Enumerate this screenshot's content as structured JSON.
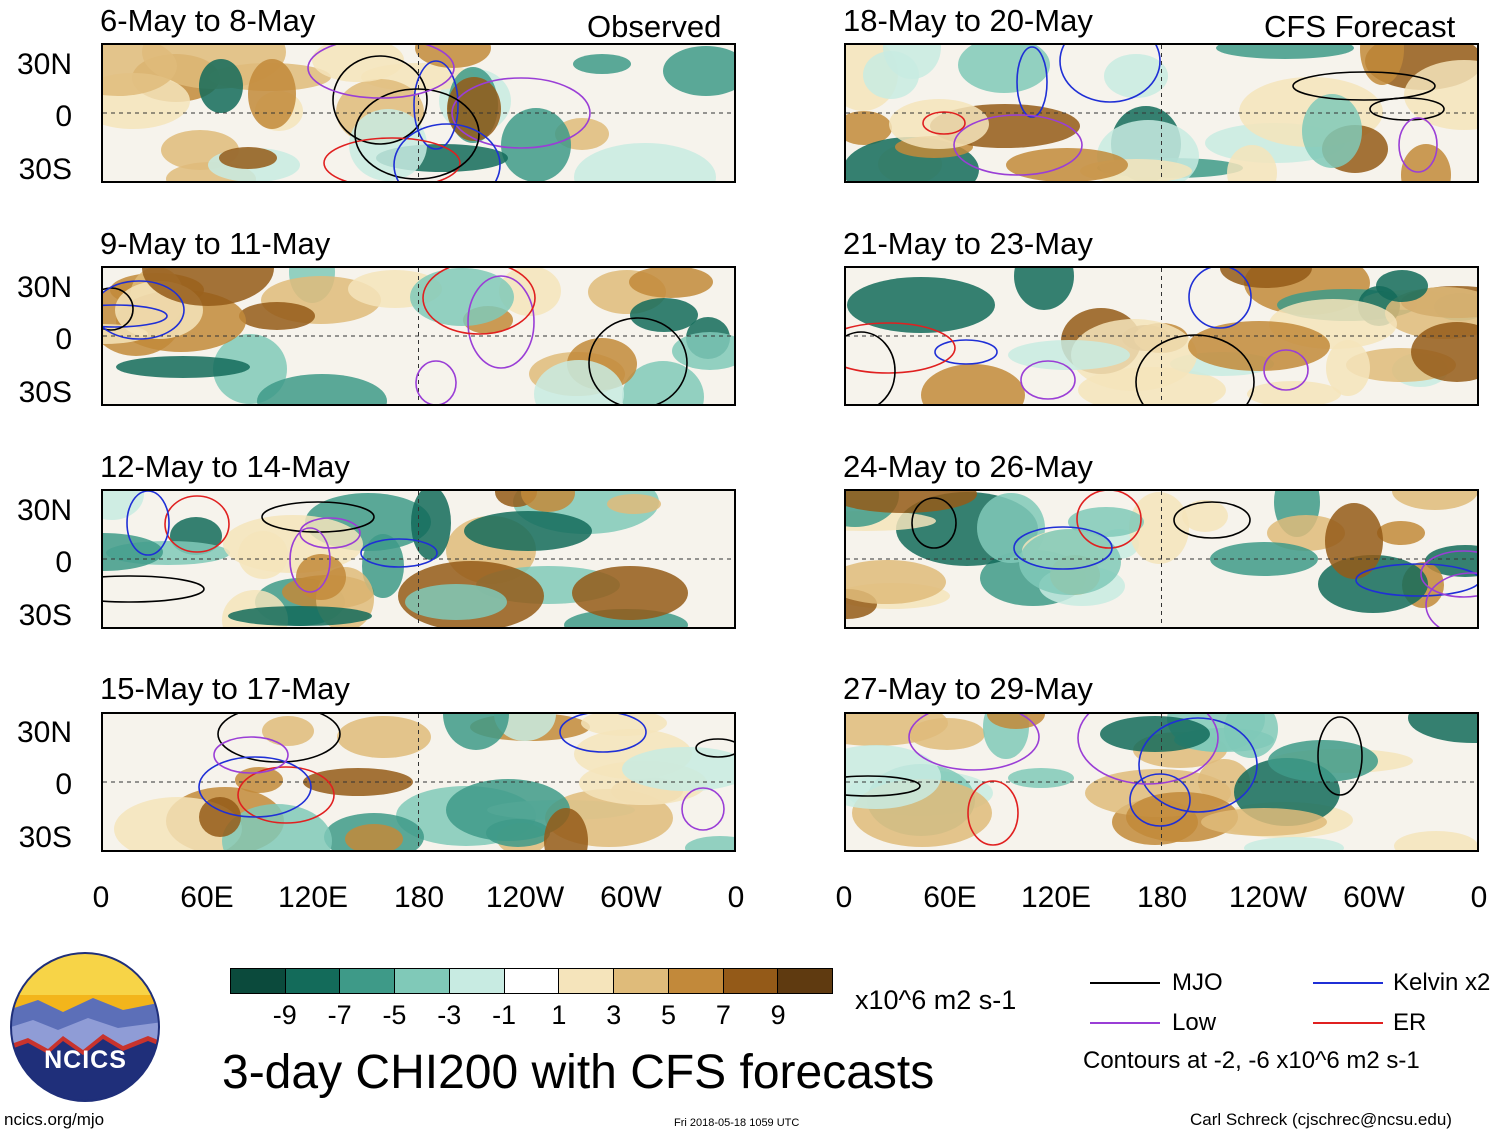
{
  "header": {
    "observed_label": "Observed",
    "forecast_label": "CFS Forecast"
  },
  "panels": [
    {
      "title": "6-May to 8-May",
      "column": "observed"
    },
    {
      "title": "9-May to 11-May",
      "column": "observed"
    },
    {
      "title": "12-May to 14-May",
      "column": "observed"
    },
    {
      "title": "15-May to 17-May",
      "column": "observed"
    },
    {
      "title": "18-May to 20-May",
      "column": "forecast"
    },
    {
      "title": "21-May to 23-May",
      "column": "forecast"
    },
    {
      "title": "24-May to 26-May",
      "column": "forecast"
    },
    {
      "title": "27-May to 29-May",
      "column": "forecast"
    }
  ],
  "axes": {
    "lat_labels": [
      "30N",
      "0",
      "30S"
    ],
    "lon_labels": [
      "0",
      "60E",
      "120E",
      "180",
      "120W",
      "60W",
      "0"
    ]
  },
  "colorbar": {
    "colors": [
      "#0b4a3c",
      "#136b5a",
      "#3e9a88",
      "#80c9b8",
      "#c8ebe2",
      "#ffffff",
      "#f5e4bb",
      "#dfbb7a",
      "#c2893a",
      "#945a18",
      "#5f3a10"
    ],
    "labels": [
      "-9",
      "-7",
      "-5",
      "-3",
      "-1",
      "1",
      "3",
      "5",
      "7",
      "9"
    ],
    "units": "x10^6 m2 s-1"
  },
  "title": "3-day CHI200 with CFS forecasts",
  "legend": {
    "items": [
      {
        "label": "MJO",
        "color": "#000000"
      },
      {
        "label": "Kelvin x2",
        "color": "#1f2fd6"
      },
      {
        "label": "Low",
        "color": "#9a3ed6"
      },
      {
        "label": "ER",
        "color": "#e02020"
      }
    ],
    "note": "Contours at -2, -6 x10^6 m2 s-1"
  },
  "logo": {
    "text": "NCICS"
  },
  "footer": {
    "left": "ncics.org/mjo",
    "center": "Fri 2018-05-18 1059 UTC",
    "right": "Carl Schreck (cjschrec@ncsu.edu)"
  }
}
